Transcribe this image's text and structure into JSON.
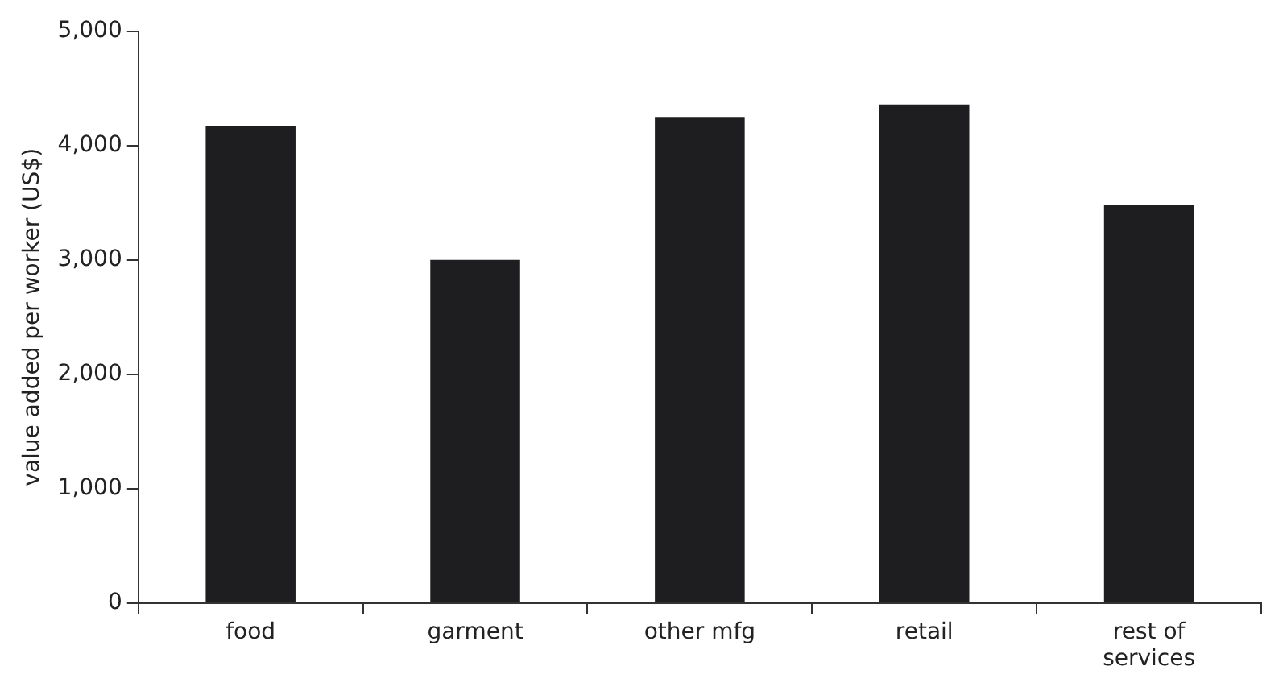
{
  "chart_data": {
    "type": "bar",
    "ylabel": "value added per worker (US$)",
    "categories": [
      "food",
      "garment",
      "other mfg",
      "retail",
      "rest of services"
    ],
    "values": [
      4170,
      3000,
      4250,
      4360,
      3480
    ],
    "color": "#1e1e21",
    "ylim": [
      0,
      5000
    ],
    "yticks": [
      {
        "value": 0,
        "label": "0"
      },
      {
        "value": 1000,
        "label": "1,000"
      },
      {
        "value": 2000,
        "label": "2,000"
      },
      {
        "value": 3000,
        "label": "3,000"
      },
      {
        "value": 4000,
        "label": "4,000"
      },
      {
        "value": 5000,
        "label": "5,000"
      }
    ],
    "grid": false,
    "legend": false
  }
}
